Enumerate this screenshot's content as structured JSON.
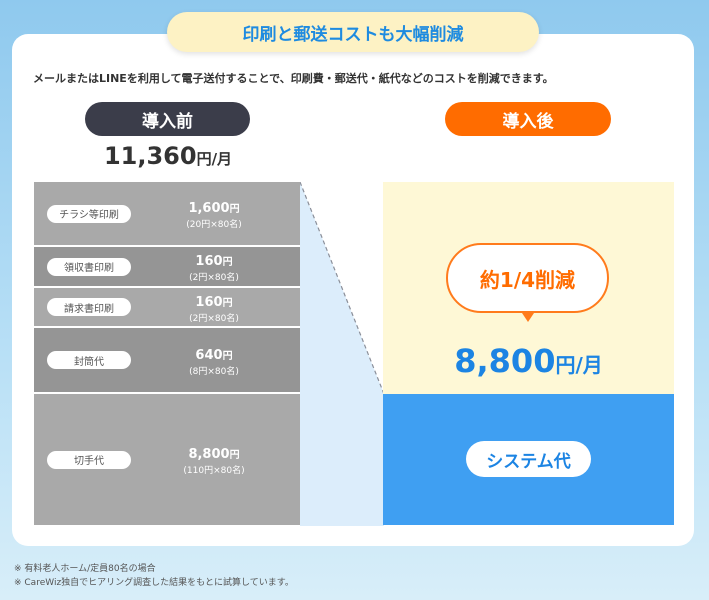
{
  "title": "印刷と郵送コストも大幅削減",
  "intro": "メールまたはLINEを利用して電子送付することで、印刷費・郵送代・紙代などのコストを削減できます。",
  "before": {
    "label": "導入前",
    "total_num": "11,360",
    "total_unit": "円/月",
    "rows": [
      {
        "tag": "チラシ等印刷",
        "amount": "1,600",
        "yen": "円",
        "detail": "(20円×80名)"
      },
      {
        "tag": "領収書印刷",
        "amount": "160",
        "yen": "円",
        "detail": "(2円×80名)"
      },
      {
        "tag": "請求書印刷",
        "amount": "160",
        "yen": "円",
        "detail": "(2円×80名)"
      },
      {
        "tag": "封筒代",
        "amount": "640",
        "yen": "円",
        "detail": "(8円×80名)"
      },
      {
        "tag": "切手代",
        "amount": "8,800",
        "yen": "円",
        "detail": "(110円×80名)"
      }
    ]
  },
  "after": {
    "label": "導入後",
    "bubble": "約1/4削減",
    "total_num": "8,800",
    "total_unit": "円/月",
    "system_label": "システム代"
  },
  "notes": [
    "※ 有料老人ホーム/定員80名の場合",
    "※ CareWiz独自でヒアリング調査した結果をもとに試算しています。"
  ],
  "colors": {
    "accent_blue": "#1c84e3",
    "accent_orange": "#ff6c00",
    "dark_pill": "#3b3d4a"
  }
}
